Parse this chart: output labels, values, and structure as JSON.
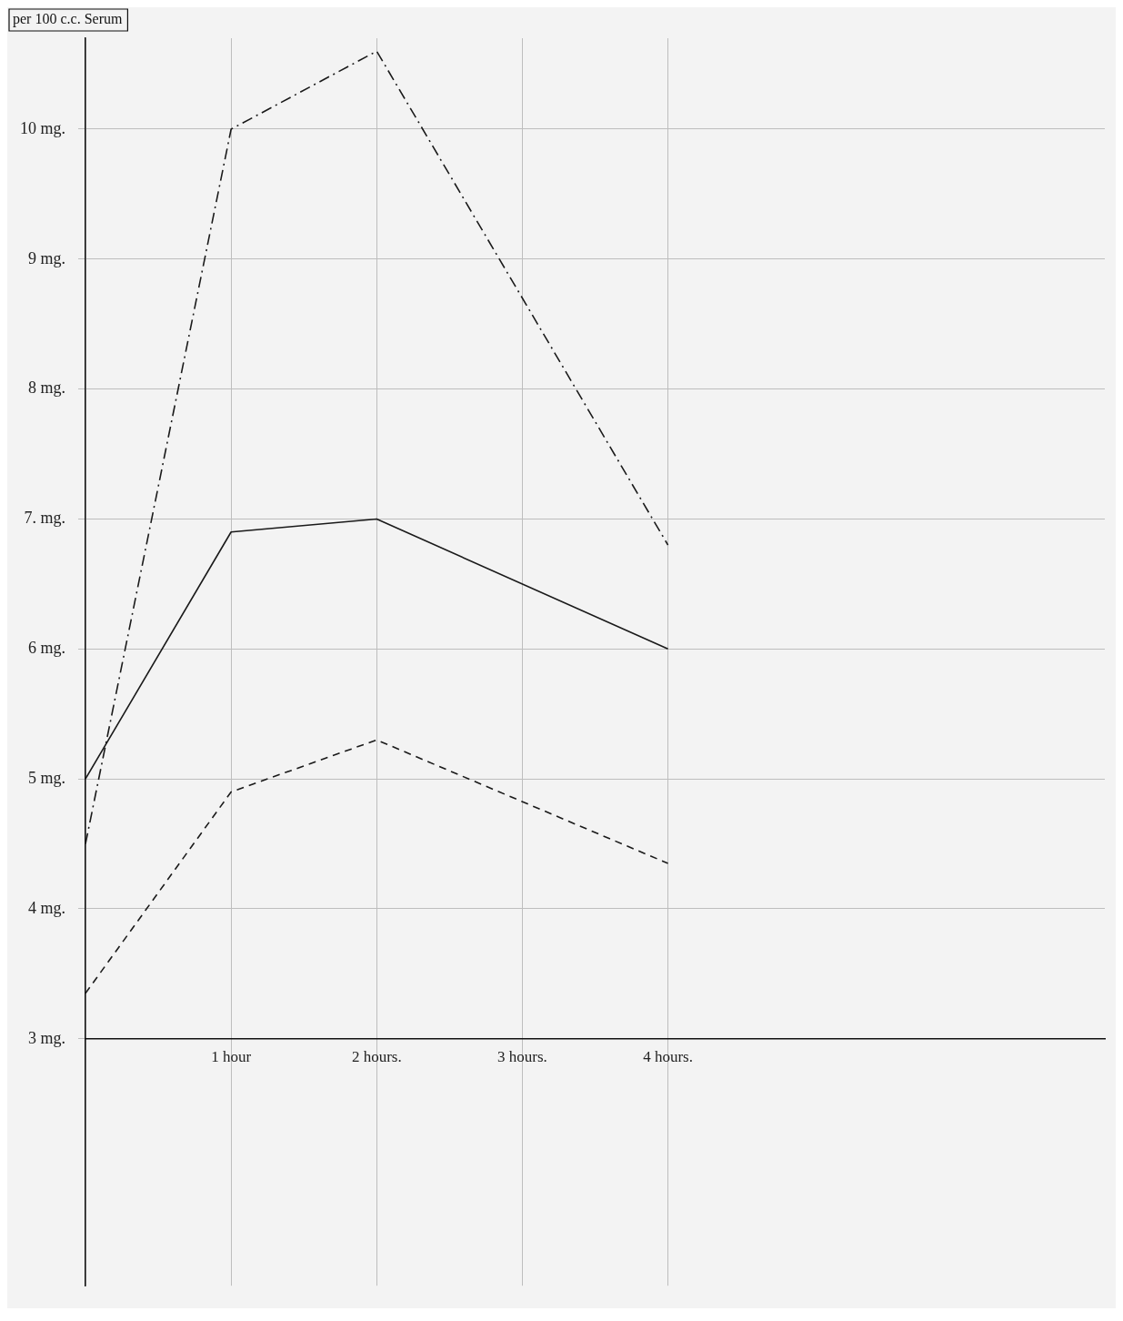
{
  "chart_data": {
    "type": "line",
    "ylabel": "per 100 c.c. Serum",
    "x": [
      0,
      1,
      2,
      4
    ],
    "series": [
      {
        "color": "#1a1a1a",
        "values": [
          4.5,
          10.0,
          10.6,
          6.8
        ],
        "line_style": "dashdot"
      },
      {
        "color": "#1a1a1a",
        "values": [
          5.0,
          6.9,
          7.0,
          6.0
        ],
        "line_style": "solid"
      },
      {
        "color": "#1a1a1a",
        "values": [
          3.35,
          4.9,
          5.3,
          4.35
        ],
        "line_style": "dashed"
      }
    ],
    "xlim": [
      0,
      7
    ],
    "xticks": [
      {
        "value": 0,
        "label": null
      },
      {
        "value": 1,
        "label": "1 hour"
      },
      {
        "value": 2,
        "label": "2 hours."
      },
      {
        "value": 3,
        "label": "3 hours."
      },
      {
        "value": 4,
        "label": "4 hours."
      }
    ],
    "ylim": [
      1.1,
      10.7
    ],
    "yticks": [
      {
        "value": 3,
        "label": "3 mg."
      },
      {
        "value": 4,
        "label": "4 mg."
      },
      {
        "value": 5,
        "label": "5 mg."
      },
      {
        "value": 6,
        "label": "6 mg."
      },
      {
        "value": 7,
        "label": "7. mg."
      },
      {
        "value": 8,
        "label": "8 mg."
      },
      {
        "value": 9,
        "label": "9 mg."
      },
      {
        "value": 10,
        "label": "10 mg."
      }
    ],
    "grid": true,
    "marker": "none",
    "legend": false
  }
}
